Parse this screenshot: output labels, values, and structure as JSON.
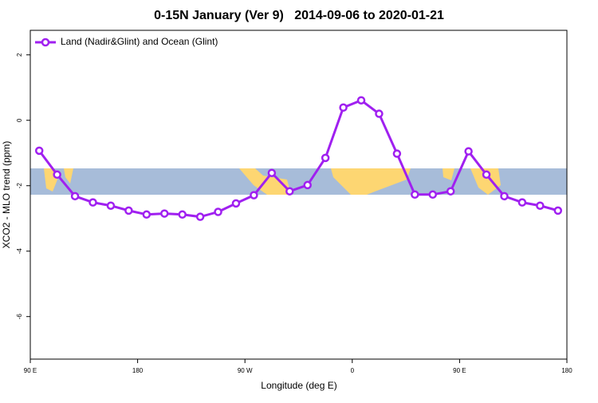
{
  "chart_data": {
    "type": "line",
    "title": "0-15N January (Ver 9)   2014-09-06 to 2020-01-21",
    "x_label": "Longitude (deg E)",
    "y_label": "XCO2 - MLO trend (ppm)",
    "x": [
      97.5,
      112.5,
      127.5,
      142.5,
      157.5,
      172.5,
      187.5,
      202.5,
      217.5,
      232.5,
      247.5,
      262.5,
      277.5,
      292.5,
      307.5,
      322.5,
      337.5,
      352.5,
      367.5,
      382.5,
      397.5,
      412.5,
      427.5,
      442.5,
      457.5,
      472.5,
      487.5,
      502.5,
      517.5,
      532.5
    ],
    "series": [
      {
        "name": "Land (Nadir&Glint) and Ocean (Glint)",
        "color": "#a020f0",
        "values": [
          -0.93,
          -1.66,
          -2.32,
          -2.51,
          -2.61,
          -2.76,
          -2.88,
          -2.85,
          -2.88,
          -2.95,
          -2.8,
          -2.54,
          -2.29,
          -1.61,
          -2.17,
          -1.98,
          -1.15,
          0.39,
          0.61,
          0.2,
          -1.02,
          -2.27,
          -2.27,
          -2.17,
          -0.95,
          -1.66,
          -2.32,
          -2.51,
          -2.61,
          -2.76
        ]
      }
    ],
    "xlim": [
      90,
      540
    ],
    "xticks": [
      {
        "value": 90,
        "label": "90 E"
      },
      180,
      {
        "value": 270,
        "label": "90 W"
      },
      {
        "value": 360,
        "label": "0"
      },
      {
        "value": 450,
        "label": "90 E"
      },
      {
        "value": 540,
        "label": "180"
      }
    ],
    "ylim": [
      -7.3,
      2.75
    ],
    "yticks": [
      2,
      0,
      -2,
      -4,
      -6
    ],
    "legend": "top-left"
  }
}
